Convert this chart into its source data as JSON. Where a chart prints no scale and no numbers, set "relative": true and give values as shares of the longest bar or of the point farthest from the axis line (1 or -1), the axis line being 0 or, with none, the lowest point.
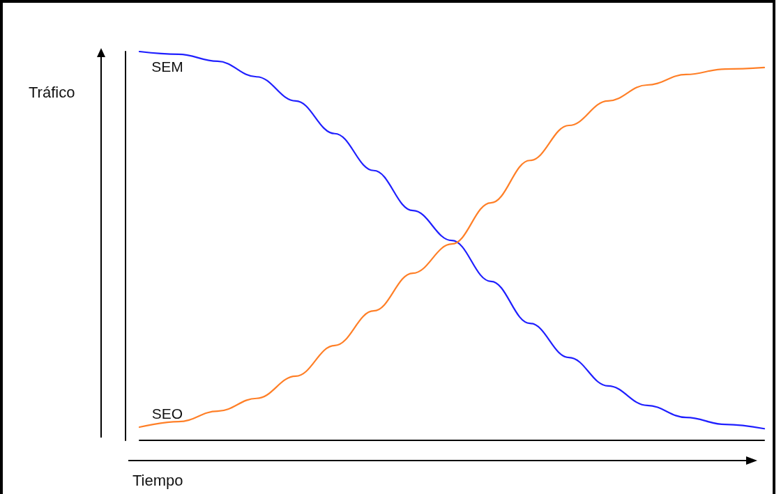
{
  "chart_data": {
    "type": "line",
    "relative": true,
    "xlabel": "Tiempo",
    "ylabel": "Tráfico",
    "marker": "none",
    "grid": false,
    "legend": false,
    "categories": [
      null,
      null,
      null,
      null,
      null,
      null,
      null,
      null,
      null,
      null,
      null,
      null,
      null,
      null,
      null,
      null,
      null
    ],
    "series": [
      {
        "name": "SEM",
        "color": "#1f1fff",
        "values": [
          1.0,
          0.993,
          0.975,
          0.935,
          0.873,
          0.789,
          0.694,
          0.591,
          0.514,
          0.409,
          0.301,
          0.213,
          0.14,
          0.09,
          0.059,
          0.041,
          0.03
        ]
      },
      {
        "name": "SEO",
        "color": "#ff7f27",
        "values": [
          0.034,
          0.048,
          0.075,
          0.108,
          0.165,
          0.244,
          0.333,
          0.43,
          0.505,
          0.611,
          0.72,
          0.81,
          0.873,
          0.914,
          0.941,
          0.955,
          0.959
        ]
      }
    ]
  }
}
